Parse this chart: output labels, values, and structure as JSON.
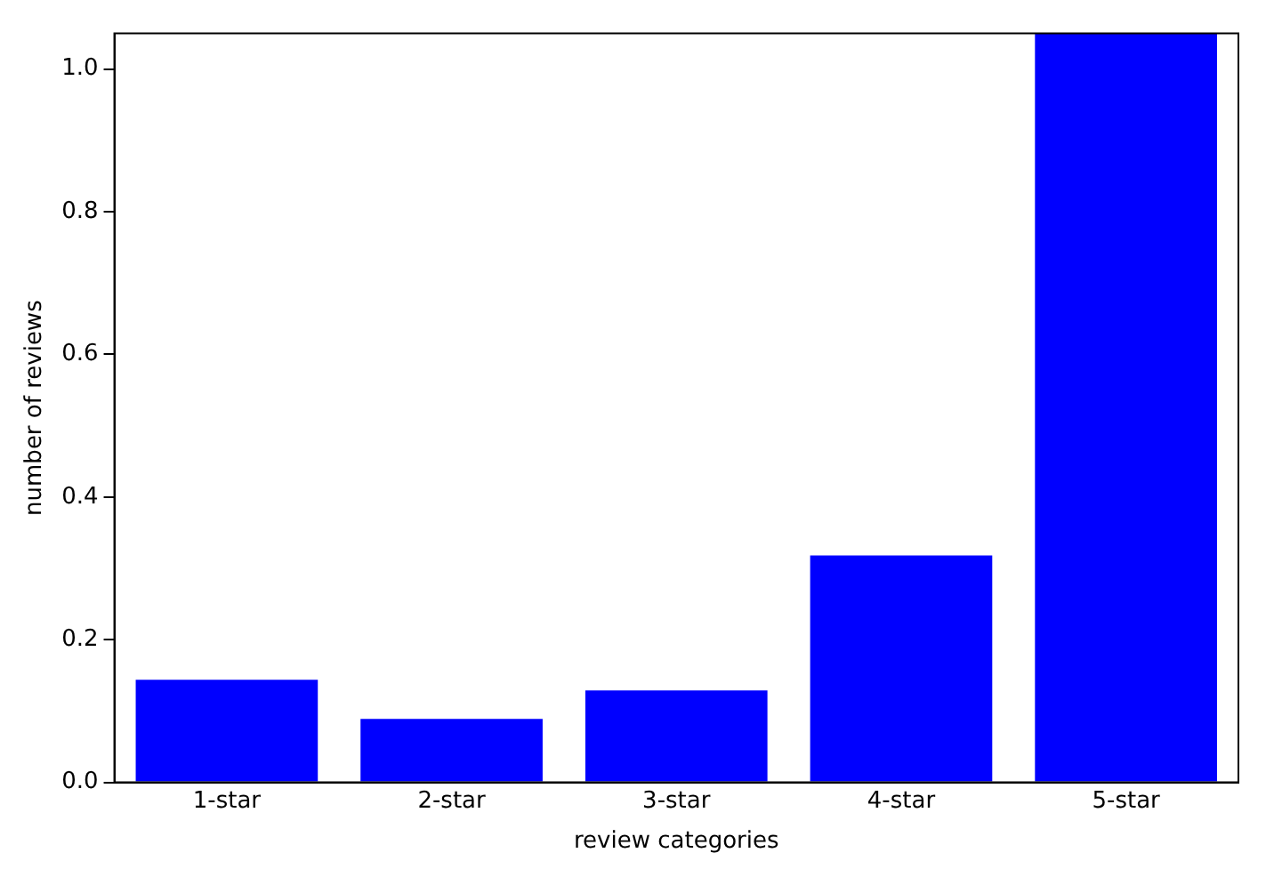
{
  "chart_data": {
    "type": "bar",
    "xlabel": "review categories",
    "ylabel": "number of reviews",
    "categories": [
      "1-star",
      "2-star",
      "3-star",
      "4-star",
      "5-star"
    ],
    "values": [
      0.144,
      0.089,
      0.129,
      0.318,
      1.05
    ],
    "color": "#0000ff",
    "ylim": [
      0,
      1.05
    ],
    "yticks": [
      {
        "value": 0,
        "label": "0.0"
      },
      {
        "value": 0.2,
        "label": "0.2"
      },
      {
        "value": 0.4,
        "label": "0.4"
      },
      {
        "value": 0.6,
        "label": "0.6"
      },
      {
        "value": 0.8,
        "label": "0.8"
      },
      {
        "value": 1.0,
        "label": "1.0"
      }
    ],
    "grid": false,
    "legend": false
  }
}
